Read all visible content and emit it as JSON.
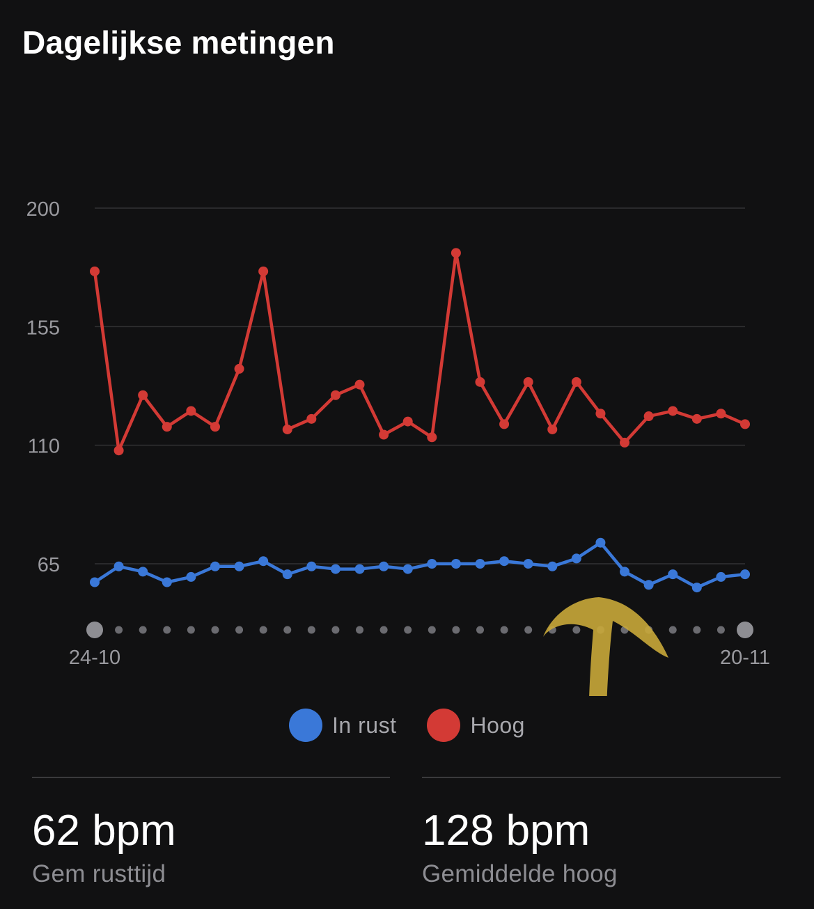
{
  "title": "Dagelijkse metingen",
  "chart_data": {
    "type": "line",
    "x": [
      "24-10",
      "25-10",
      "26-10",
      "27-10",
      "28-10",
      "29-10",
      "30-10",
      "31-10",
      "01-11",
      "02-11",
      "03-11",
      "04-11",
      "05-11",
      "06-11",
      "07-11",
      "08-11",
      "09-11",
      "10-11",
      "11-11",
      "12-11",
      "13-11",
      "14-11",
      "15-11",
      "16-11",
      "17-11",
      "18-11",
      "19-11",
      "20-11"
    ],
    "x_tick_labels": [
      "24-10",
      "20-11"
    ],
    "y_ticks": [
      200,
      155,
      110,
      65
    ],
    "ylim": [
      42,
      200
    ],
    "grid": true,
    "legend_position": "bottom",
    "series": [
      {
        "name": "In rust",
        "color": "#3a78d8",
        "values": [
          58,
          64,
          62,
          58,
          60,
          64,
          64,
          66,
          61,
          64,
          63,
          63,
          64,
          63,
          65,
          65,
          65,
          66,
          65,
          64,
          67,
          73,
          62,
          57,
          61,
          56,
          60,
          61
        ]
      },
      {
        "name": "Hoog",
        "color": "#d33a35",
        "values": [
          176,
          108,
          129,
          117,
          123,
          117,
          139,
          176,
          116,
          120,
          129,
          133,
          114,
          119,
          113,
          183,
          134,
          118,
          134,
          116,
          134,
          122,
          111,
          121,
          123,
          120,
          122,
          118
        ]
      }
    ]
  },
  "legend": [
    {
      "label": "In rust",
      "color": "#3a78d8"
    },
    {
      "label": "Hoog",
      "color": "#d33a35"
    }
  ],
  "stats": [
    {
      "value": "62 bpm",
      "label": "Gem rusttijd"
    },
    {
      "value": "128 bpm",
      "label": "Gemiddelde hoog"
    }
  ]
}
